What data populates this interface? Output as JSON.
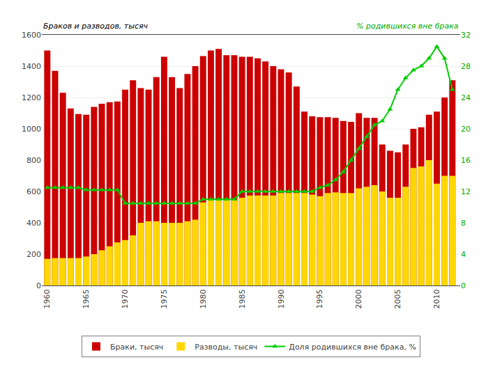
{
  "chart_data": {
    "type": "bar",
    "ylabel": "Браков и разводов, тысяч",
    "y2label": "% родившихся вне брака",
    "x": [
      1960,
      1961,
      1962,
      1963,
      1964,
      1965,
      1966,
      1967,
      1968,
      1969,
      1970,
      1971,
      1972,
      1973,
      1974,
      1975,
      1976,
      1977,
      1978,
      1979,
      1980,
      1981,
      1982,
      1983,
      1984,
      1985,
      1986,
      1987,
      1988,
      1989,
      1990,
      1991,
      1992,
      1993,
      1994,
      1995,
      1996,
      1997,
      1998,
      1999,
      2000,
      2001,
      2002,
      2003,
      2004,
      2005,
      2006,
      2007,
      2008,
      2009,
      2010,
      2011,
      2012
    ],
    "series": [
      {
        "name": "Браки, тысяч",
        "type": "bar",
        "color": "#CC0000",
        "values": [
          1500,
          1370,
          1230,
          1130,
          1095,
          1090,
          1140,
          1160,
          1170,
          1175,
          1250,
          1310,
          1260,
          1250,
          1330,
          1460,
          1330,
          1260,
          1350,
          1400,
          1465,
          1500,
          1510,
          1470,
          1470,
          1460,
          1460,
          1450,
          1430,
          1400,
          1380,
          1360,
          1270,
          1110,
          1080,
          1075,
          1075,
          1070,
          1050,
          1045,
          1100,
          1070,
          1070,
          900,
          860,
          850,
          900,
          1000,
          1010,
          1090,
          1110,
          1200,
          1310
        ]
      },
      {
        "name": "Разводы, тысяч",
        "type": "bar",
        "color": "#FFD700",
        "values": [
          170,
          175,
          175,
          175,
          175,
          185,
          200,
          225,
          250,
          275,
          290,
          320,
          400,
          410,
          410,
          400,
          400,
          400,
          410,
          420,
          530,
          545,
          545,
          545,
          545,
          560,
          575,
          575,
          575,
          575,
          590,
          590,
          590,
          590,
          580,
          570,
          590,
          595,
          590,
          590,
          620,
          630,
          640,
          600,
          560,
          560,
          630,
          750,
          760,
          800,
          650,
          700,
          700
        ]
      },
      {
        "name": "Доля родившихся вне брака, %",
        "type": "line",
        "axis": "y2",
        "color": "#00CC00",
        "marker": "triangle-up",
        "values": [
          12.5,
          12.5,
          12.5,
          12.5,
          12.5,
          12.2,
          12.2,
          12.2,
          12.2,
          12.2,
          10.5,
          10.5,
          10.5,
          10.5,
          10.5,
          10.5,
          10.5,
          10.5,
          10.5,
          10.5,
          11.0,
          11.0,
          11.0,
          11.0,
          11.0,
          12.0,
          12.0,
          12.0,
          12.0,
          12.0,
          12.0,
          12.0,
          12.0,
          12.0,
          12.0,
          12.5,
          12.8,
          13.5,
          14.5,
          16.0,
          17.5,
          19.0,
          20.5,
          21.0,
          22.5,
          25.0,
          26.5,
          27.5,
          28.0,
          29.0,
          30.5,
          29.0,
          25.0
        ]
      }
    ],
    "xlim": [
      1959.3,
      2013.0
    ],
    "xticks": [
      1960,
      1965,
      1970,
      1975,
      1980,
      1985,
      1990,
      1995,
      2000,
      2005,
      2010
    ],
    "ylim": [
      0,
      1600
    ],
    "yticks": [
      0,
      200,
      400,
      600,
      800,
      1000,
      1200,
      1400,
      1600
    ],
    "y2lim": [
      0,
      32
    ],
    "y2ticks": [
      0,
      4,
      8,
      12,
      16,
      20,
      24,
      28,
      32
    ],
    "grid": "y",
    "legend": "bottom"
  }
}
